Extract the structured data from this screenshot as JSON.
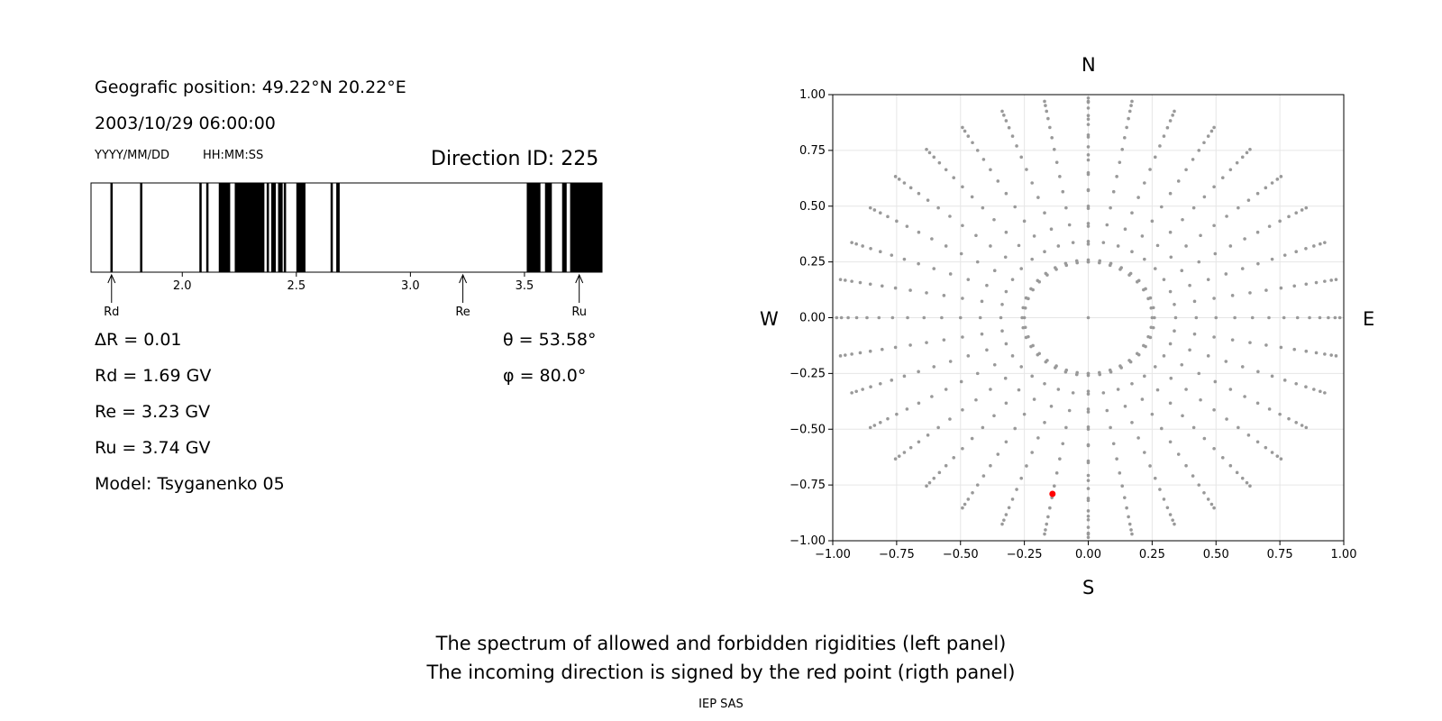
{
  "left_panel": {
    "geo_position": "Geografic position: 49.22°N 20.22°E",
    "datetime": "2003/10/29 06:00:00",
    "date_format": "YYYY/MM/DD",
    "time_format": "HH:MM:SS",
    "direction_id": "Direction ID: 225",
    "delta_r": "ΔR = 0.01",
    "rd": "Rd = 1.69 GV",
    "re": "Re = 3.23 GV",
    "ru": "Ru = 3.74 GV",
    "model": "Model: Tsyganenko 05",
    "theta": "θ = 53.58°",
    "phi": "φ = 80.0°"
  },
  "right_panel": {
    "north": "N",
    "south": "S",
    "west": "W",
    "east": "E"
  },
  "footer": {
    "line1": "The spectrum of allowed and forbidden rigidities (left panel)",
    "line2": "The incoming direction is signed by the red point (rigth panel)",
    "credit": "IEP SAS"
  },
  "chart_data": [
    {
      "type": "bar",
      "subtype": "rigidity-spectrum",
      "xlim": [
        1.6,
        3.84
      ],
      "xticks": [
        2.0,
        2.5,
        3.0,
        3.5
      ],
      "xtick_labels": [
        "2.0",
        "2.5",
        "3.0",
        "3.5"
      ],
      "forbidden_intervals": [
        [
          1.685,
          1.695
        ],
        [
          1.815,
          1.825
        ],
        [
          2.075,
          2.085
        ],
        [
          2.105,
          2.115
        ],
        [
          2.16,
          2.21
        ],
        [
          2.23,
          2.36
        ],
        [
          2.37,
          2.38
        ],
        [
          2.39,
          2.41
        ],
        [
          2.42,
          2.44
        ],
        [
          2.445,
          2.455
        ],
        [
          2.5,
          2.54
        ],
        [
          2.65,
          2.66
        ],
        [
          2.675,
          2.69
        ],
        [
          3.51,
          3.57
        ],
        [
          3.59,
          3.62
        ],
        [
          3.665,
          3.685
        ],
        [
          3.7,
          3.84
        ]
      ],
      "markers": [
        {
          "label": "Rd",
          "value": 1.69
        },
        {
          "label": "Re",
          "value": 3.23
        },
        {
          "label": "Ru",
          "value": 3.74
        }
      ],
      "colors": {
        "forbidden": "#000000",
        "allowed": "#ffffff"
      }
    },
    {
      "type": "scatter",
      "subtype": "incoming-directions",
      "xlim": [
        -1.0,
        1.0
      ],
      "ylim": [
        -1.0,
        1.0
      ],
      "xticks": [
        "−1.00",
        "−0.75",
        "−0.50",
        "−0.25",
        "0.00",
        "0.25",
        "0.50",
        "0.75",
        "1.00"
      ],
      "yticks": [
        "−1.00",
        "−0.75",
        "−0.50",
        "−0.25",
        "0.00",
        "0.25",
        "0.50",
        "0.75",
        "1.00"
      ],
      "grid": true,
      "pattern": {
        "description": "projected zenith/azimuth direction grid",
        "azimuths_deg": [
          0,
          10,
          20,
          30,
          40,
          50,
          60,
          70,
          80,
          90,
          100,
          110,
          120,
          130,
          140,
          150,
          160,
          170,
          180,
          190,
          200,
          210,
          220,
          230,
          240,
          250,
          260,
          270,
          280,
          290,
          300,
          310,
          320,
          330,
          340,
          350
        ],
        "inner_ring_radius": 0.25
      },
      "highlight": {
        "x": -0.14,
        "y": -0.79
      },
      "colors": {
        "points": "#999999",
        "highlight": "#ff0000",
        "grid": "#e6e6e6"
      }
    }
  ]
}
